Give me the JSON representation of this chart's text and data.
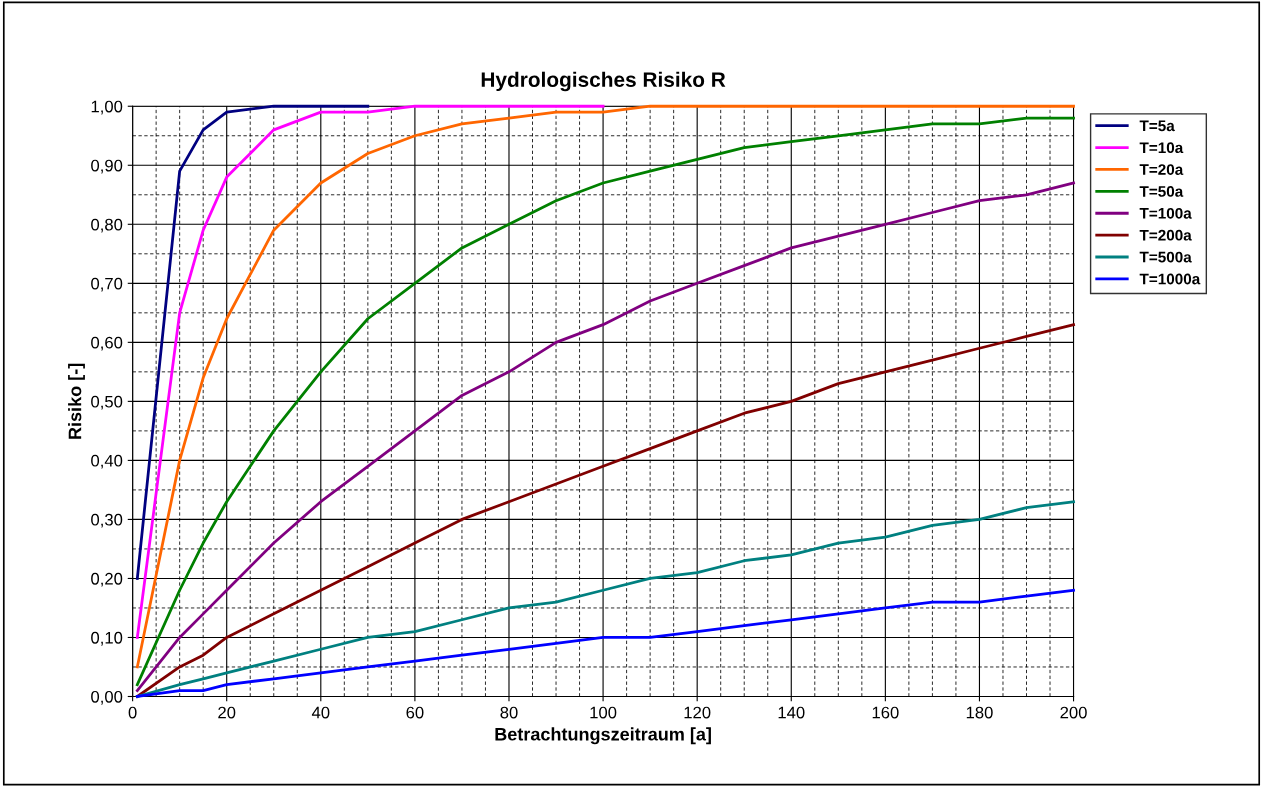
{
  "chart_data": {
    "type": "line",
    "title": "Hydrologisches Risiko R",
    "xlabel": "Betrachtungszeitraum [a]",
    "ylabel": "Risiko [-]",
    "x": [
      1,
      10,
      15,
      20,
      30,
      40,
      50,
      60,
      70,
      80,
      90,
      100,
      110,
      120,
      130,
      140,
      150,
      160,
      170,
      180,
      190,
      200
    ],
    "series": [
      {
        "name": "T=5a",
        "color": "#000080",
        "values": [
          0.2,
          0.89,
          0.96,
          0.99,
          1.0,
          1.0,
          1.0,
          null,
          null,
          null,
          null,
          null,
          null,
          null,
          null,
          null,
          null,
          null,
          null,
          null,
          null,
          null
        ]
      },
      {
        "name": "T=10a",
        "color": "#ff00ff",
        "values": [
          0.1,
          0.65,
          0.79,
          0.88,
          0.96,
          0.99,
          0.99,
          1.0,
          1.0,
          1.0,
          1.0,
          1.0,
          null,
          null,
          null,
          null,
          null,
          null,
          null,
          null,
          null,
          null
        ]
      },
      {
        "name": "T=20a",
        "color": "#ff6600",
        "values": [
          0.05,
          0.4,
          0.54,
          0.64,
          0.79,
          0.87,
          0.92,
          0.95,
          0.97,
          0.98,
          0.99,
          0.99,
          1.0,
          1.0,
          1.0,
          1.0,
          1.0,
          1.0,
          1.0,
          1.0,
          1.0,
          1.0
        ]
      },
      {
        "name": "T=50a",
        "color": "#008000",
        "values": [
          0.02,
          0.18,
          0.26,
          0.33,
          0.45,
          0.55,
          0.64,
          0.7,
          0.76,
          0.8,
          0.84,
          0.87,
          0.89,
          0.91,
          0.93,
          0.94,
          0.95,
          0.96,
          0.97,
          0.97,
          0.98,
          0.98
        ]
      },
      {
        "name": "T=100a",
        "color": "#800080",
        "values": [
          0.01,
          0.1,
          0.14,
          0.18,
          0.26,
          0.33,
          0.39,
          0.45,
          0.51,
          0.55,
          0.6,
          0.63,
          0.67,
          0.7,
          0.73,
          0.76,
          0.78,
          0.8,
          0.82,
          0.84,
          0.85,
          0.87
        ]
      },
      {
        "name": "T=200a",
        "color": "#800000",
        "values": [
          0.0,
          0.05,
          0.07,
          0.1,
          0.14,
          0.18,
          0.22,
          0.26,
          0.3,
          0.33,
          0.36,
          0.39,
          0.42,
          0.45,
          0.48,
          0.5,
          0.53,
          0.55,
          0.57,
          0.59,
          0.61,
          0.63
        ]
      },
      {
        "name": "T=500a",
        "color": "#008080",
        "values": [
          0.0,
          0.02,
          0.03,
          0.04,
          0.06,
          0.08,
          0.1,
          0.11,
          0.13,
          0.15,
          0.16,
          0.18,
          0.2,
          0.21,
          0.23,
          0.24,
          0.26,
          0.27,
          0.29,
          0.3,
          0.32,
          0.33
        ]
      },
      {
        "name": "T=1000a",
        "color": "#0000ff",
        "values": [
          0.0,
          0.01,
          0.01,
          0.02,
          0.03,
          0.04,
          0.05,
          0.06,
          0.07,
          0.08,
          0.09,
          0.1,
          0.1,
          0.11,
          0.12,
          0.13,
          0.14,
          0.15,
          0.16,
          0.16,
          0.17,
          0.18
        ]
      }
    ],
    "xlim": [
      0,
      200
    ],
    "xticks": [
      0,
      20,
      40,
      60,
      80,
      100,
      120,
      140,
      160,
      180,
      200
    ],
    "ylim": [
      0,
      1
    ],
    "yticks": [
      {
        "value": 0,
        "label": "0,00"
      },
      {
        "value": 0.1,
        "label": "0,10"
      },
      {
        "value": 0.2,
        "label": "0,20"
      },
      {
        "value": 0.3,
        "label": "0,30"
      },
      {
        "value": 0.4,
        "label": "0,40"
      },
      {
        "value": 0.5,
        "label": "0,50"
      },
      {
        "value": 0.6,
        "label": "0,60"
      },
      {
        "value": 0.7,
        "label": "0,70"
      },
      {
        "value": 0.8,
        "label": "0,80"
      },
      {
        "value": 0.9,
        "label": "0,90"
      },
      {
        "value": 1,
        "label": "1,00"
      }
    ],
    "grid": true,
    "legend": "right",
    "marker": "none",
    "line_style": "solid"
  }
}
